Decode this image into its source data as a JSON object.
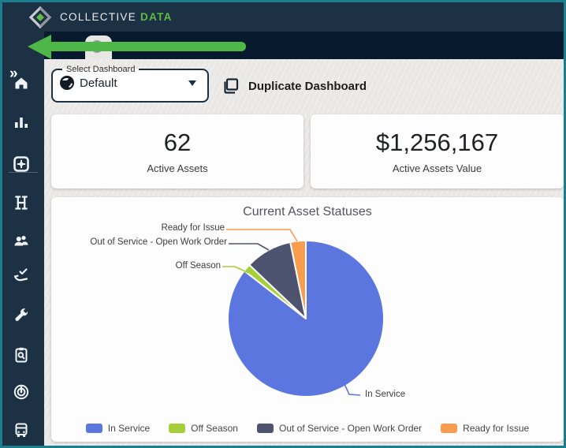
{
  "window": {
    "frame_color": "#1A7E8F",
    "header_color": "#1C3144",
    "tabstrip_color": "#081B2E",
    "content_bg": "#E9E8E6"
  },
  "header": {
    "brand_primary": "COLLECTIVE",
    "brand_secondary": "DATA",
    "brand_accent_color": "#62BB46"
  },
  "annotation": {
    "arrow_color": "#4DB848",
    "dot_color": "#98999B"
  },
  "sidebar": {
    "expand_glyph": "»",
    "items": [
      {
        "icon": "home-icon"
      },
      {
        "icon": "bar-chart-icon"
      },
      {
        "icon": "gear-square-icon"
      },
      {
        "icon": "equipment-rack-icon"
      },
      {
        "icon": "people-icon"
      },
      {
        "icon": "hand-check-icon"
      },
      {
        "icon": "wrench-icon"
      },
      {
        "icon": "clipboard-search-icon"
      },
      {
        "icon": "gauge-icon"
      },
      {
        "icon": "bus-icon"
      }
    ]
  },
  "toolbar": {
    "select_label": "Select Dashboard",
    "dashboard_value": "Default",
    "duplicate_label": "Duplicate Dashboard"
  },
  "stats": [
    {
      "value": "62",
      "label": "Active Assets"
    },
    {
      "value": "$1,256,167",
      "label": "Active Assets Value"
    }
  ],
  "chart_data": {
    "type": "pie",
    "title": "Current Asset Statuses",
    "series": [
      {
        "name": "In Service",
        "percent": 85.5,
        "color": "#5B76DE"
      },
      {
        "name": "Off Season",
        "percent": 1.6,
        "color": "#A6CE39"
      },
      {
        "name": "Out of Service - Open Work Order",
        "percent": 9.7,
        "color": "#4E5470"
      },
      {
        "name": "Ready for Issue",
        "percent": 3.2,
        "color": "#F89C4E"
      }
    ],
    "total_assets_shown": 62,
    "start_angle": "top",
    "direction": "clockwise",
    "slice_border_color": "#FFFFFF",
    "legend_position": "bottom"
  }
}
